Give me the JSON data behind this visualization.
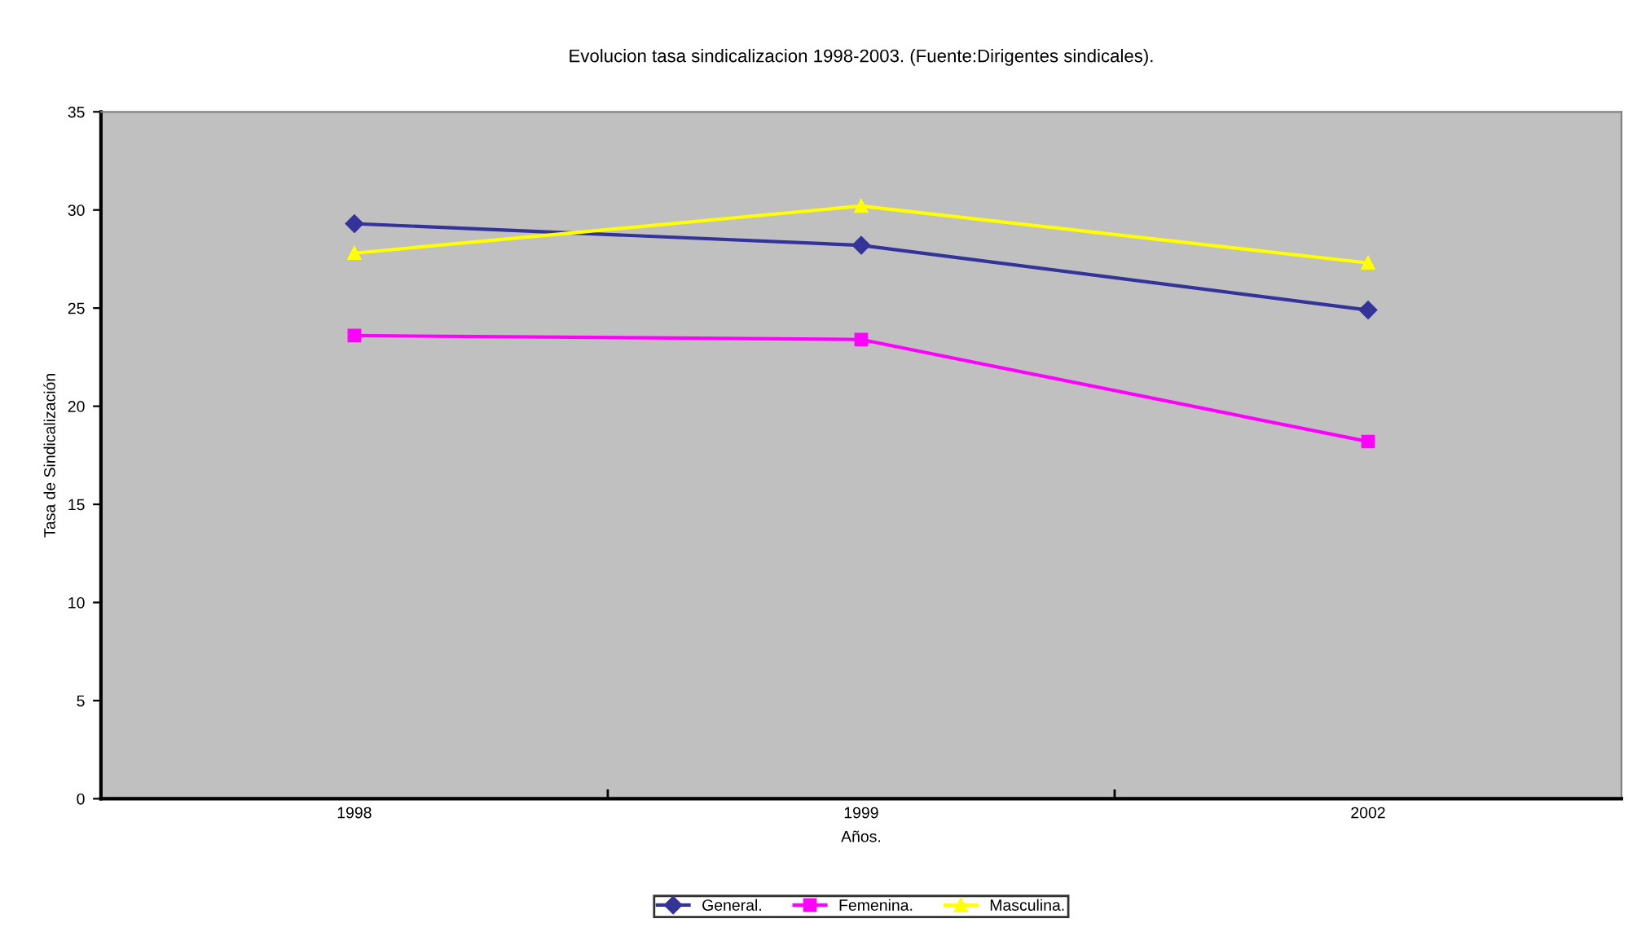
{
  "chart_data": {
    "type": "line",
    "title": "Evolucion tasa sindicalizacion 1998-2003. (Fuente:Dirigentes sindicales).",
    "xlabel": "Años.",
    "ylabel": "Tasa de Sindicalización",
    "categories": [
      "1998",
      "1999",
      "2002"
    ],
    "series": [
      {
        "name": "General.",
        "color": "#333399",
        "marker": "diamond",
        "values": [
          29.3,
          28.2,
          24.9
        ]
      },
      {
        "name": "Femenina.",
        "color": "#ff00ff",
        "marker": "square",
        "values": [
          23.6,
          23.4,
          18.2
        ]
      },
      {
        "name": "Masculina.",
        "color": "#ffff00",
        "marker": "triangle",
        "values": [
          27.8,
          30.2,
          27.3
        ]
      }
    ],
    "ylim": [
      0,
      35
    ],
    "yticks": [
      0,
      5,
      10,
      15,
      20,
      25,
      30,
      35
    ],
    "grid": false,
    "legend": "bottom"
  }
}
